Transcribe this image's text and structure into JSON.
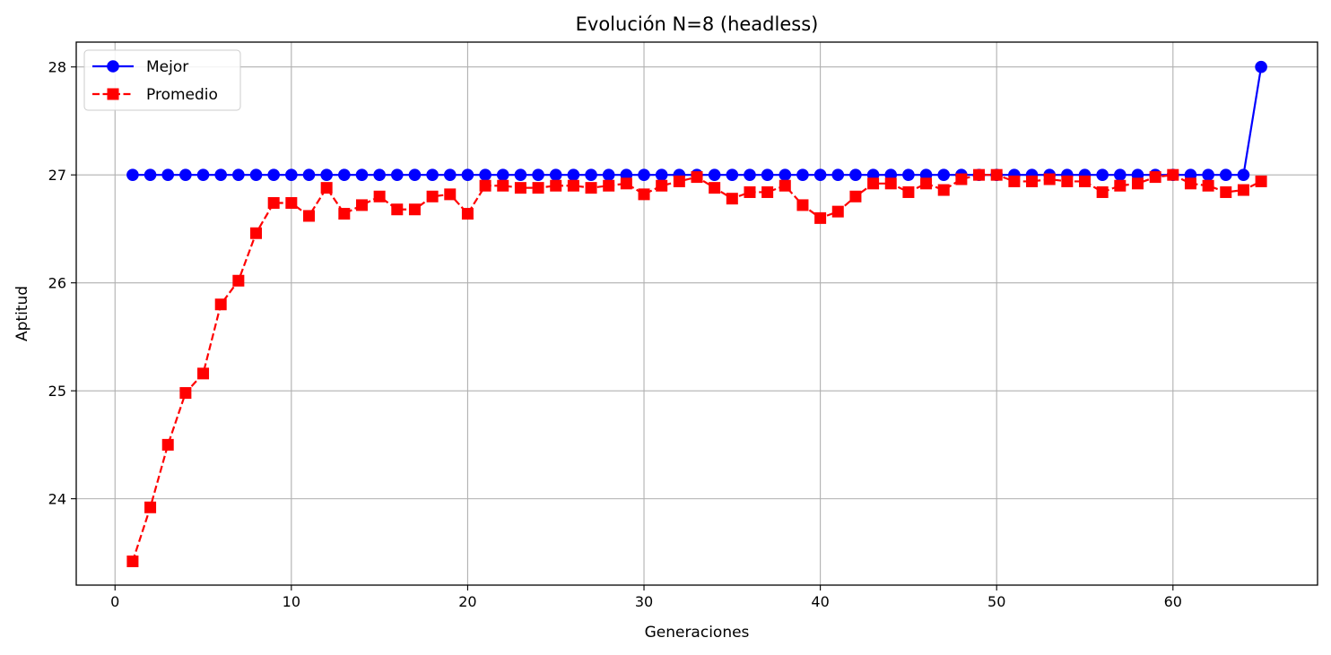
{
  "chart_data": {
    "type": "line",
    "title": "Evolución N=8 (headless)",
    "xlabel": "Generaciones",
    "ylabel": "Aptitud",
    "xlim": [
      -2.2,
      68.2
    ],
    "ylim": [
      23.2,
      28.23
    ],
    "xticks": [
      0,
      10,
      20,
      30,
      40,
      50,
      60
    ],
    "yticks": [
      24,
      25,
      26,
      27,
      28
    ],
    "grid": true,
    "legend_position": "top-left",
    "x": [
      1,
      2,
      3,
      4,
      5,
      6,
      7,
      8,
      9,
      10,
      11,
      12,
      13,
      14,
      15,
      16,
      17,
      18,
      19,
      20,
      21,
      22,
      23,
      24,
      25,
      26,
      27,
      28,
      29,
      30,
      31,
      32,
      33,
      34,
      35,
      36,
      37,
      38,
      39,
      40,
      41,
      42,
      43,
      44,
      45,
      46,
      47,
      48,
      49,
      50,
      51,
      52,
      53,
      54,
      55,
      56,
      57,
      58,
      59,
      60,
      61,
      62,
      63,
      64,
      65
    ],
    "series": [
      {
        "name": "Mejor",
        "color": "#0000ff",
        "line_style": "solid",
        "marker": "circle",
        "values": [
          27,
          27,
          27,
          27,
          27,
          27,
          27,
          27,
          27,
          27,
          27,
          27,
          27,
          27,
          27,
          27,
          27,
          27,
          27,
          27,
          27,
          27,
          27,
          27,
          27,
          27,
          27,
          27,
          27,
          27,
          27,
          27,
          27,
          27,
          27,
          27,
          27,
          27,
          27,
          27,
          27,
          27,
          27,
          27,
          27,
          27,
          27,
          27,
          27,
          27,
          27,
          27,
          27,
          27,
          27,
          27,
          27,
          27,
          27,
          27,
          27,
          27,
          27,
          27,
          28
        ]
      },
      {
        "name": "Promedio",
        "color": "#ff0000",
        "line_style": "dashed",
        "marker": "square",
        "values": [
          23.42,
          23.92,
          24.5,
          24.98,
          25.16,
          25.8,
          26.02,
          26.46,
          26.74,
          26.74,
          26.62,
          26.88,
          26.64,
          26.72,
          26.8,
          26.68,
          26.68,
          26.8,
          26.82,
          26.64,
          26.9,
          26.9,
          26.88,
          26.88,
          26.9,
          26.9,
          26.88,
          26.9,
          26.92,
          26.82,
          26.9,
          26.94,
          26.98,
          26.88,
          26.78,
          26.84,
          26.84,
          26.9,
          26.72,
          26.6,
          26.66,
          26.8,
          26.92,
          26.92,
          26.84,
          26.92,
          26.86,
          26.96,
          27.0,
          27.0,
          26.94,
          26.94,
          26.96,
          26.94,
          26.94,
          26.84,
          26.9,
          26.92,
          26.98,
          27.0,
          26.92,
          26.9,
          26.84,
          26.86,
          26.94
        ]
      }
    ]
  }
}
